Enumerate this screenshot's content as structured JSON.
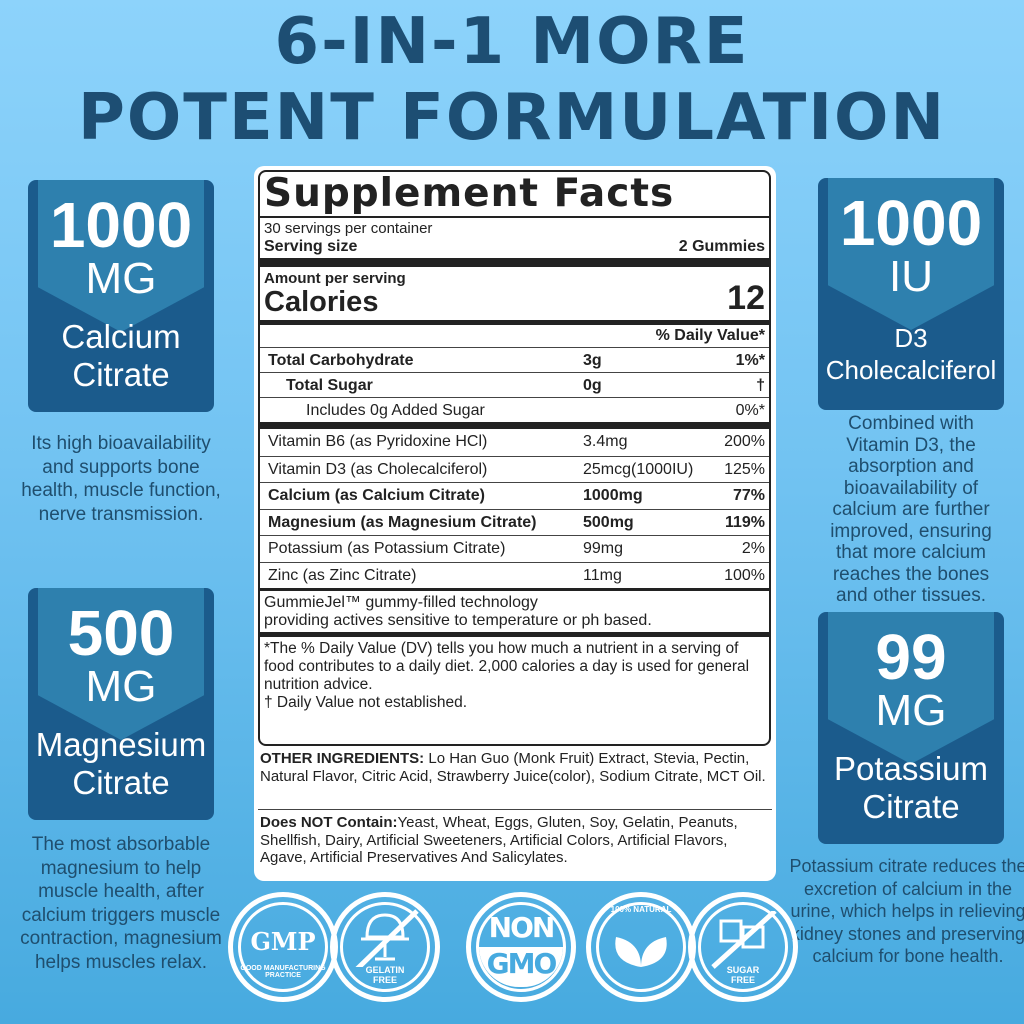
{
  "headline": {
    "line1": "6-IN-1 MORE",
    "line2": "POTENT FORMULATION"
  },
  "colors": {
    "title": "#1d4e73",
    "badge_dark": "#1b5b8c",
    "badge_light": "#2e80ae",
    "background": "#72c3f2"
  },
  "badges": [
    {
      "amount": "1000",
      "unit": "MG",
      "name_line1": "Calcium",
      "name_line2": "Citrate",
      "description": "Its high bioavailability and supports bone health, muscle function, nerve transmission."
    },
    {
      "amount": "500",
      "unit": "MG",
      "name_line1": "Magnesium",
      "name_line2": "Citrate",
      "description": "The most absorbable magnesium to help muscle health, after calcium triggers muscle contraction, magnesium helps muscles relax."
    },
    {
      "amount": "1000",
      "unit": "IU",
      "name_line1": "D3",
      "name_line2": "Cholecalciferol",
      "description": "Combined with Vitamin D3, the absorption and bioavailability of calcium are further improved, ensuring that more calcium reaches the bones and other tissues."
    },
    {
      "amount": "99",
      "unit": "MG",
      "name_line1": "Potassium",
      "name_line2": "Citrate",
      "description": "Potassium citrate reduces the excretion of calcium in the urine, which helps in relieving kidney stones and preserving calcium for bone health."
    }
  ],
  "facts": {
    "title": "Supplement Facts",
    "servings": "30 servings per container",
    "serving_size_label": "Serving size",
    "serving_size": "2 Gummies",
    "amount_per_serving": "Amount per serving",
    "calories_label": "Calories",
    "calories": "12",
    "dv_header": "% Daily Value*",
    "rows": [
      {
        "name": "Total Carbohydrate",
        "amount": "3g",
        "dv": "1%*"
      },
      {
        "name": "Total Sugar",
        "amount": "0g",
        "dv": "†"
      },
      {
        "name": "Includes 0g Added Sugar",
        "amount": "",
        "dv": "0%*"
      },
      {
        "name": "Vitamin B6 (as Pyridoxine HCl)",
        "amount": "3.4mg",
        "dv": "200%"
      },
      {
        "name": "Vitamin D3 (as Cholecalciferol)",
        "amount": "25mcg(1000IU)",
        "dv": "125%"
      },
      {
        "name": "Calcium (as Calcium Citrate)",
        "amount": "1000mg",
        "dv": "77%"
      },
      {
        "name": "Magnesium (as Magnesium Citrate)",
        "amount": "500mg",
        "dv": "119%"
      },
      {
        "name": "Potassium (as Potassium Citrate)",
        "amount": "99mg",
        "dv": "2%"
      },
      {
        "name": "Zinc (as Zinc Citrate)",
        "amount": "11mg",
        "dv": "100%"
      }
    ],
    "tech_line1": "GummieJel™ gummy-filled technology",
    "tech_line2": "providing actives sensitive to temperature or ph based.",
    "footnote": "*The % Daily Value (DV) tells you how much a nutrient in a serving of food contributes to a daily diet. 2,000 calories a day is used for general nutrition advice.",
    "dagger": "† Daily Value not established.",
    "other_label": "OTHER INGREDIENTS:",
    "other": " Lo Han Guo (Monk Fruit) Extract, Stevia, Pectin, Natural Flavor, Citric Acid, Strawberry Juice(color), Sodium Citrate, MCT Oil.",
    "not_label": "Does NOT Contain:",
    "not": "Yeast, Wheat, Eggs, Gluten, Soy, Gelatin, Peanuts, Shellfish, Dairy, Artificial Sweeteners, Artificial Colors, Artificial Flavors, Agave, Artificial Preservatives And Salicylates."
  },
  "seals": [
    {
      "icon": "gmp-seal-icon",
      "main": "GMP",
      "ring": "GOOD MANUFACTURING PRACTICE"
    },
    {
      "icon": "gelatin-free-icon",
      "main": "",
      "ring": "GELATIN FREE"
    },
    {
      "icon": "non-gmo-icon",
      "main": "NON",
      "ring": "GMO"
    },
    {
      "icon": "natural-leaf-icon",
      "main": "",
      "ring": "100% NATURAL"
    },
    {
      "icon": "sugar-free-icon",
      "main": "",
      "ring": "SUGAR FREE"
    }
  ]
}
